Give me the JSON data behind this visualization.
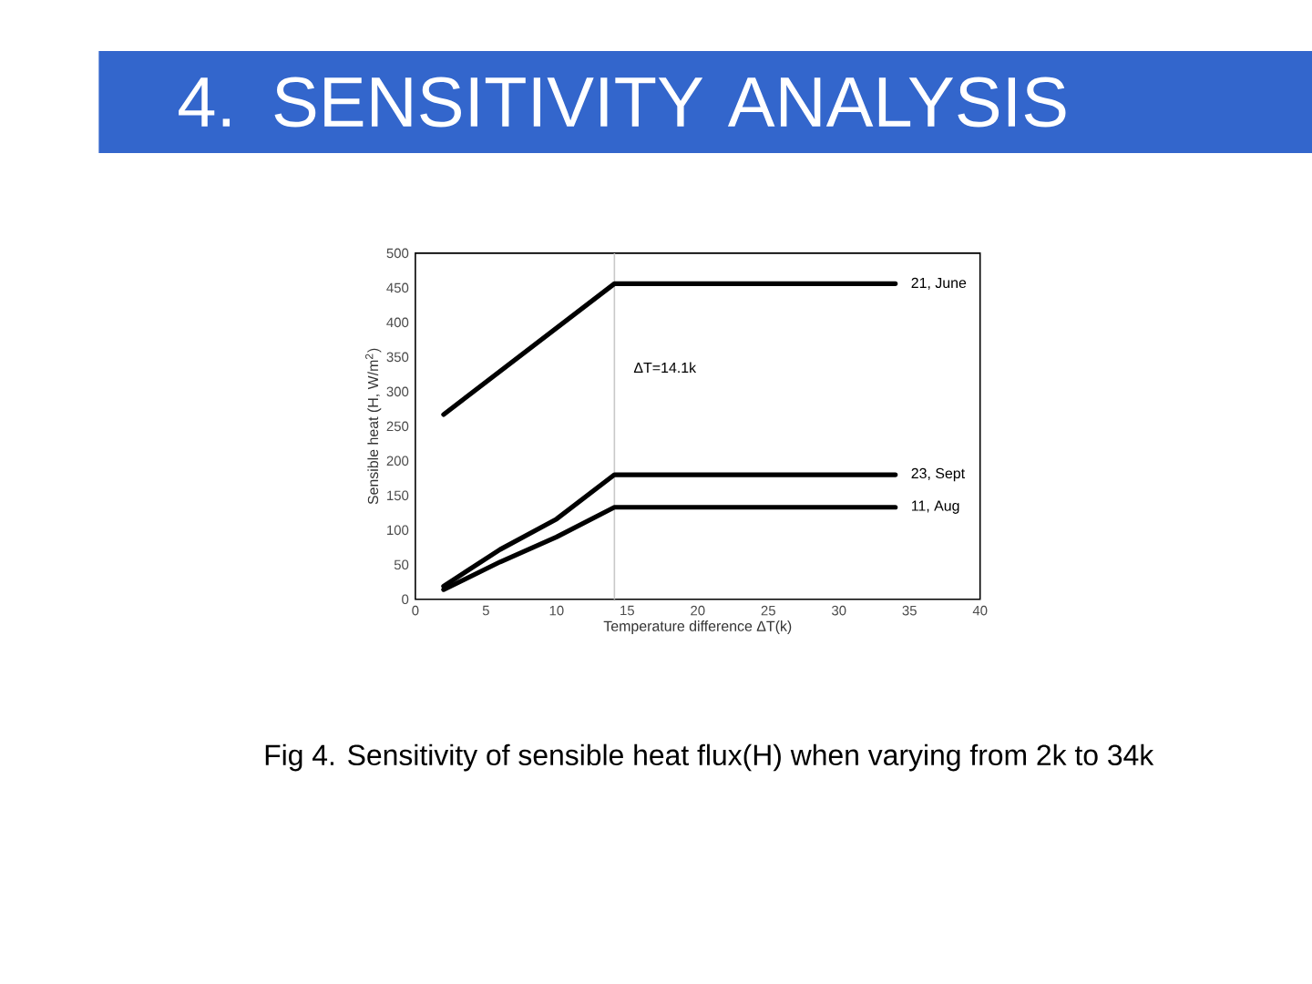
{
  "chart_data": {
    "type": "line",
    "title": "4. SENSITIVITY ANALYSIS",
    "xlabel": "Temperature difference ΔT(k)",
    "ylabel": "Sensible heat (H, W/m$^{2}$)",
    "series": [
      {
        "name": "21, June",
        "color": "#000000",
        "x": [
          2,
          14.1,
          34
        ],
        "values": [
          267,
          456,
          456
        ]
      },
      {
        "name": "23, Sept",
        "color": "#000000",
        "x": [
          2,
          6,
          10,
          14.1,
          34
        ],
        "values": [
          19,
          72,
          116,
          180,
          180
        ]
      },
      {
        "name": "11, Aug",
        "color": "#000000",
        "x": [
          2,
          6,
          10,
          14.1,
          34
        ],
        "values": [
          14,
          54,
          90,
          133,
          133
        ]
      }
    ],
    "xlim": [
      0,
      40
    ],
    "xticks": [
      0,
      5,
      10,
      15,
      20,
      25,
      30,
      35,
      40
    ],
    "ylim": [
      0,
      500
    ],
    "yticks": [
      0,
      50,
      100,
      150,
      200,
      250,
      300,
      350,
      400,
      450,
      500
    ],
    "ref_lines": [
      {
        "axis": "x",
        "value": 14.1,
        "label": "ΔT=14.1k",
        "color": "#c8c8c8"
      }
    ],
    "annotations": [
      "Fig 4. Sensitivity of sensible heat flux(H) when varying  from 2k to 34k"
    ]
  }
}
